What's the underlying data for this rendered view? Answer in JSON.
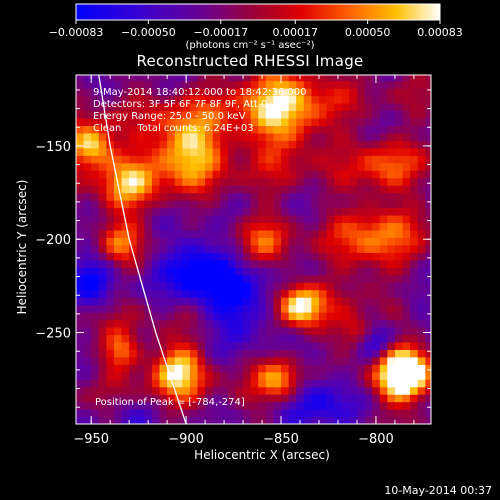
{
  "chart_data": {
    "type": "heatmap",
    "title": "Reconstructed RHESSI Image",
    "xlabel": "Heliocentric X (arcsec)",
    "ylabel": "Heliocentric Y (arcsec)",
    "xlim": [
      -958,
      -771
    ],
    "ylim": [
      -299,
      -112
    ],
    "x_ticks": [
      -950,
      -900,
      -850,
      -800
    ],
    "x_tick_labels": [
      "−950",
      "−900",
      "−850",
      "−800"
    ],
    "y_ticks": [
      -250,
      -200,
      -150
    ],
    "y_tick_labels": [
      "−250",
      "−200",
      "−150"
    ],
    "colorbar": {
      "min": -0.00083,
      "max": 0.00083,
      "ticks": [
        -0.00083,
        -0.0005,
        -0.00017,
        0.00017,
        0.0005,
        0.00083
      ],
      "tick_labels": [
        "−0.00083",
        "−0.00050",
        "−0.00017",
        "0.00017",
        "0.00050",
        "0.00083"
      ],
      "units": "(photons cm⁻² s⁻¹ asec⁻²)",
      "colormap": [
        "#0000ff",
        "#5a00b4",
        "#800050",
        "#d20000",
        "#ff6000",
        "#ffd000",
        "#ffffff"
      ]
    },
    "annotations": {
      "time_range": "9-May-2014 18:40:12.000 to 18:42:36.000",
      "detectors": "Detectors: 3F 5F 6F 7F 8F 9F, Att 0",
      "energy": "Energy Range: 25.0 - 50.0 keV",
      "clean": "Clean",
      "total_counts": "Total counts: 6.24E+03",
      "peak": "Position of Peak = [-784,-274]"
    },
    "peak_position": [
      -784,
      -274
    ],
    "limb_curve": [
      [
        -946,
        -112
      ],
      [
        -940,
        -150
      ],
      [
        -930,
        -200
      ],
      [
        -916,
        -250
      ],
      [
        -900,
        -299
      ]
    ]
  },
  "footer": {
    "timestamp": "10-May-2014 00:37"
  }
}
